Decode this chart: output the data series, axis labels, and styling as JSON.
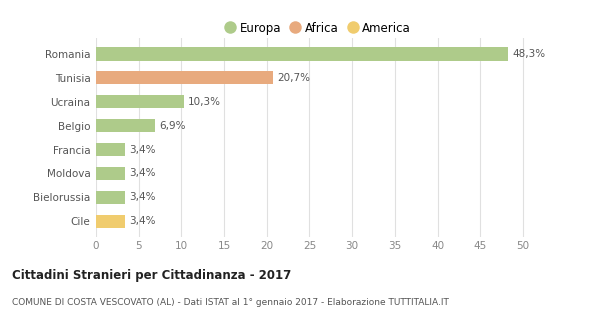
{
  "categories": [
    "Romania",
    "Tunisia",
    "Ucraina",
    "Belgio",
    "Francia",
    "Moldova",
    "Bielorussia",
    "Cile"
  ],
  "values": [
    48.3,
    20.7,
    10.3,
    6.9,
    3.4,
    3.4,
    3.4,
    3.4
  ],
  "labels": [
    "48,3%",
    "20,7%",
    "10,3%",
    "6,9%",
    "3,4%",
    "3,4%",
    "3,4%",
    "3,4%"
  ],
  "colors": [
    "#aecb8a",
    "#e8aa7e",
    "#aecb8a",
    "#aecb8a",
    "#aecb8a",
    "#aecb8a",
    "#aecb8a",
    "#f0cc6e"
  ],
  "legend": [
    {
      "label": "Europa",
      "color": "#aecb8a"
    },
    {
      "label": "Africa",
      "color": "#e8aa7e"
    },
    {
      "label": "America",
      "color": "#f0cc6e"
    }
  ],
  "xlim": [
    0,
    52
  ],
  "xticks": [
    0,
    5,
    10,
    15,
    20,
    25,
    30,
    35,
    40,
    45,
    50
  ],
  "title": "Cittadini Stranieri per Cittadinanza - 2017",
  "subtitle": "COMUNE DI COSTA VESCOVATO (AL) - Dati ISTAT al 1° gennaio 2017 - Elaborazione TUTTITALIA.IT",
  "background_color": "#ffffff",
  "grid_color": "#e0e0e0"
}
